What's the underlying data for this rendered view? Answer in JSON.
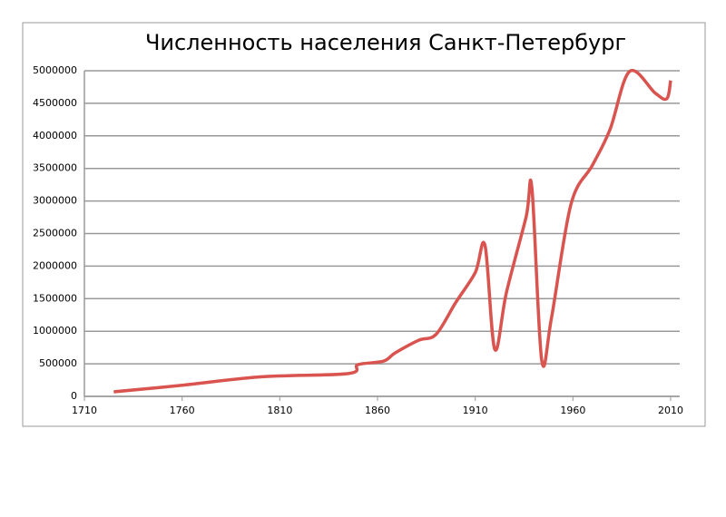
{
  "chart_data": {
    "type": "line",
    "title": "Численность населения Санкт-Петербург",
    "series": [
      {
        "name": "Численность населения",
        "color": "#d9534f",
        "x": [
          1725,
          1760,
          1800,
          1845,
          1850,
          1863,
          1869,
          1881,
          1890,
          1900,
          1910,
          1915,
          1920,
          1926,
          1936,
          1939,
          1944,
          1949,
          1959,
          1970,
          1979,
          1989,
          2002,
          2008,
          2010
        ],
        "values": [
          70000,
          170000,
          300000,
          350000,
          487000,
          540000,
          667000,
          861000,
          954000,
          1440000,
          1900000,
          2318000,
          722000,
          1600000,
          2750000,
          3200000,
          560000,
          1200000,
          2950000,
          3550000,
          4100000,
          4990000,
          4660000,
          4570000,
          4850000
        ]
      }
    ],
    "xlim": [
      1710,
      2010
    ],
    "xticks": [
      1710,
      1760,
      1810,
      1860,
      1910,
      1960,
      2010
    ],
    "ylim": [
      0,
      5000000
    ],
    "yticks": [
      0,
      500000,
      1000000,
      1500000,
      2000000,
      2500000,
      3000000,
      3500000,
      4000000,
      4500000,
      5000000
    ],
    "grid": true
  }
}
